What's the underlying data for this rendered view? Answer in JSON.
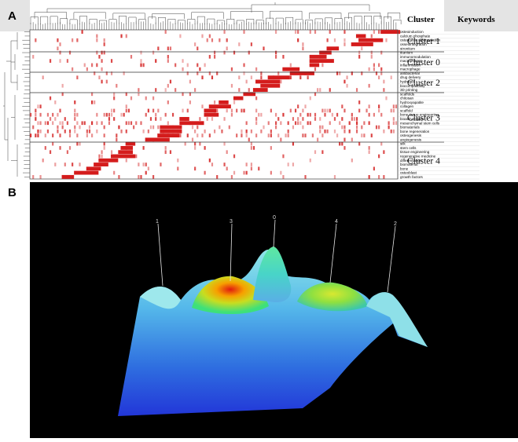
{
  "panel_a": {
    "label": "A",
    "header_cluster": "Cluster",
    "header_keywords": "Keywords",
    "clusters": [
      "Cluster 1",
      "Cluster 0",
      "Cluster 2",
      "Cluster 3",
      "Cluster 4"
    ],
    "keywords": [
      "osteoinduction",
      "calcium phosphate",
      "osteogenic differentiation",
      "osseointegration",
      "strontium",
      "titanium",
      "immunomodulation",
      "macrophages",
      "inflammation",
      "macrophage",
      "antibacterial",
      "drug delivery",
      "hydrogel",
      "biocompatibility",
      "3D printing",
      "scaffolds",
      "chitosan",
      "hydroxyapatite",
      "collagen",
      "scaffold",
      "bone tissue engineering",
      "bioactive glass",
      "mesenchymal stem cells",
      "biomaterials",
      "bone regeneration",
      "osteogenesis",
      "angiogenesis",
      "silk",
      "stem cells",
      "tissue engineering",
      "regenerative medicine",
      "differentiation",
      "biomaterial",
      "bone",
      "osteoblast",
      "growth factors"
    ]
  },
  "panel_b": {
    "label": "B",
    "peak_labels": [
      "1",
      "3",
      "0",
      "4",
      "2"
    ]
  }
}
